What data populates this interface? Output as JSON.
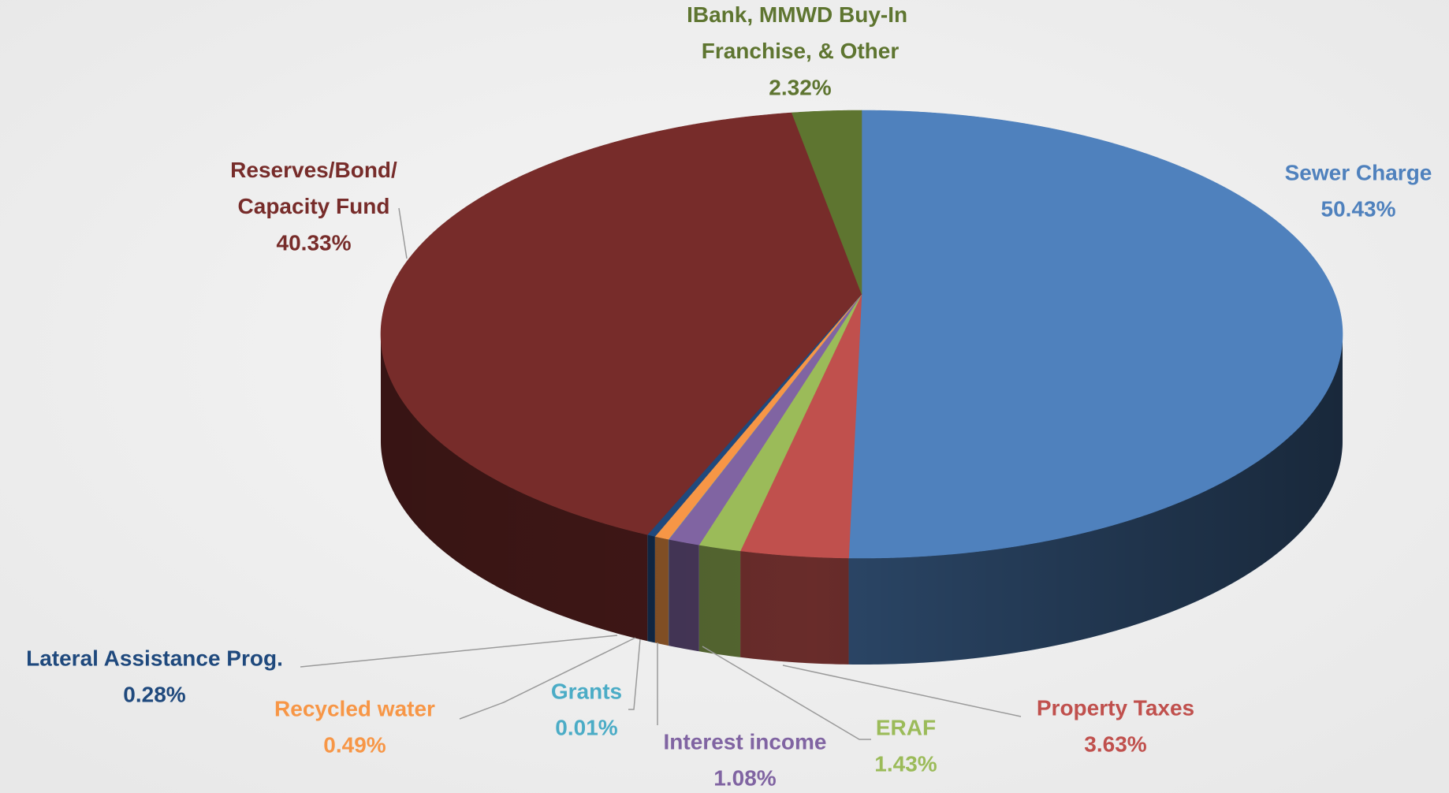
{
  "chart_data": {
    "type": "pie",
    "categories": [
      "Sewer Charge",
      "Property Taxes",
      "ERAF",
      "Interest income",
      "Grants",
      "Recycled water",
      "Lateral Assistance Prog.",
      "Reserves/Bond/Capacity Fund",
      "IBank, MMWD Buy-In Franchise, & Other"
    ],
    "values": [
      50.43,
      3.63,
      1.43,
      1.08,
      0.01,
      0.49,
      0.28,
      40.33,
      2.32
    ],
    "value_labels": [
      "50.43%",
      "3.63%",
      "1.43%",
      "1.08%",
      "0.01%",
      "0.49%",
      "0.28%",
      "40.33%",
      "2.32%"
    ],
    "colors": [
      "#4f81bd",
      "#c0504d",
      "#9bbb59",
      "#8064a2",
      "#4bacc6",
      "#f79646",
      "#1f497d",
      "#772c2a",
      "#5e7530"
    ]
  }
}
